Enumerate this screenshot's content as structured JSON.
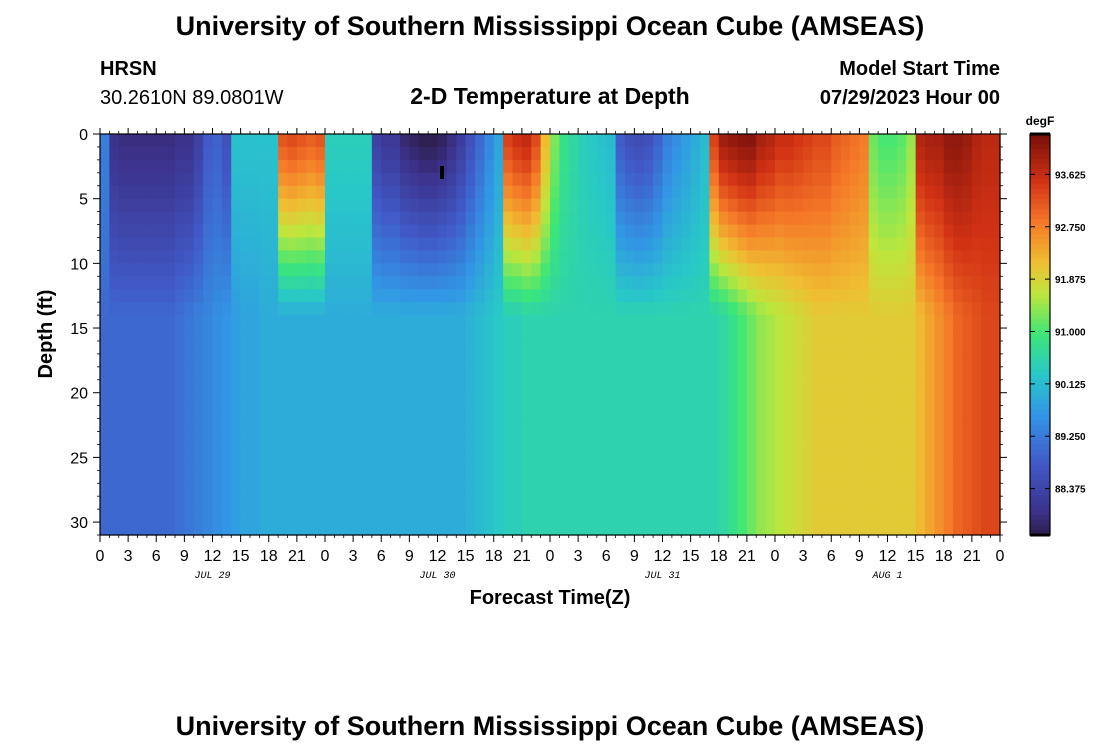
{
  "header": {
    "title": "University of Southern Mississippi Ocean Cube (AMSEAS)",
    "station_name": "HRSN",
    "station_coords": "30.2610N  89.0801W",
    "plot_title": "2-D Temperature at Depth",
    "model_start_label": "Model Start Time",
    "model_start_value": "07/29/2023 Hour 00"
  },
  "footer": {
    "title": "University of Southern Mississippi Ocean Cube (AMSEAS)"
  },
  "chart_data": {
    "type": "heatmap",
    "xlabel": "Forecast Time(Z)",
    "ylabel": "Depth (ft)",
    "x_ticks": [
      "0",
      "3",
      "6",
      "9",
      "12",
      "15",
      "18",
      "21",
      "0",
      "3",
      "6",
      "9",
      "12",
      "15",
      "18",
      "21",
      "0",
      "3",
      "6",
      "9",
      "12",
      "15",
      "18",
      "21",
      "0",
      "3",
      "6",
      "9",
      "12",
      "15",
      "18",
      "21",
      "0"
    ],
    "x_range_hours": [
      0,
      96
    ],
    "date_labels": [
      {
        "label": "JUL 29",
        "hour": 12
      },
      {
        "label": "JUL 30",
        "hour": 36
      },
      {
        "label": "JUL 31",
        "hour": 60
      },
      {
        "label": "AUG 1",
        "hour": 84
      }
    ],
    "y_ticks": [
      "0",
      "5",
      "10",
      "15",
      "20",
      "25",
      "30"
    ],
    "y_range": [
      0,
      31
    ],
    "colorbar": {
      "unit": "degF",
      "ticks": [
        "93.625",
        "92.750",
        "91.875",
        "91.000",
        "90.125",
        "89.250",
        "88.375"
      ],
      "range": [
        87.6,
        94.3
      ]
    },
    "surface_temperature_degF": [
      89.3,
      88.0,
      87.9,
      87.9,
      87.9,
      87.9,
      87.9,
      87.9,
      88.0,
      88.0,
      88.3,
      88.8,
      88.9,
      88.6,
      90.2,
      90.2,
      90.2,
      90.2,
      90.2,
      93.2,
      93.3,
      93.2,
      93.1,
      93.2,
      90.4,
      90.4,
      90.4,
      90.4,
      90.4,
      88.3,
      88.1,
      88.1,
      87.8,
      87.7,
      87.6,
      87.6,
      87.7,
      87.9,
      88.2,
      88.6,
      89.0,
      89.4,
      89.8,
      93.4,
      93.6,
      93.7,
      93.3,
      92.2,
      91.3,
      90.8,
      90.6,
      90.4,
      90.3,
      90.2,
      90.1,
      88.8,
      88.6,
      88.5,
      88.6,
      88.9,
      89.3,
      89.5,
      89.7,
      89.9,
      90.1,
      93.4,
      94.0,
      94.1,
      94.2,
      94.2,
      93.9,
      93.8,
      93.6,
      93.6,
      93.5,
      93.4,
      93.3,
      93.3,
      93.1,
      93.0,
      92.9,
      92.8,
      91.2,
      91.0,
      91.0,
      91.1,
      91.4,
      93.8,
      93.9,
      93.9,
      94.1,
      94.1,
      94.0,
      93.8,
      93.7,
      93.7
    ],
    "deep_temperature_degF": [
      89.0,
      89.0,
      89.0,
      89.0,
      89.0,
      89.0,
      89.0,
      89.0,
      89.1,
      89.2,
      89.3,
      89.4,
      89.5,
      89.6,
      89.7,
      89.8,
      89.8,
      89.9,
      89.9,
      89.9,
      89.9,
      89.9,
      89.9,
      89.9,
      89.9,
      89.9,
      89.9,
      89.9,
      89.9,
      89.9,
      89.9,
      89.9,
      89.9,
      89.9,
      89.9,
      89.9,
      89.9,
      89.9,
      89.9,
      90.0,
      90.1,
      90.2,
      90.3,
      90.4,
      90.4,
      90.5,
      90.5,
      90.5,
      90.5,
      90.5,
      90.5,
      90.5,
      90.5,
      90.5,
      90.5,
      90.5,
      90.5,
      90.5,
      90.5,
      90.5,
      90.5,
      90.5,
      90.5,
      90.5,
      90.5,
      90.5,
      90.6,
      90.8,
      91.0,
      91.2,
      91.4,
      91.5,
      91.6,
      91.7,
      91.8,
      91.9,
      92.0,
      92.0,
      92.0,
      92.0,
      92.0,
      92.0,
      92.0,
      92.0,
      92.0,
      92.0,
      92.0,
      92.2,
      92.4,
      92.6,
      92.8,
      93.0,
      93.1,
      93.2,
      93.3,
      93.3
    ]
  }
}
